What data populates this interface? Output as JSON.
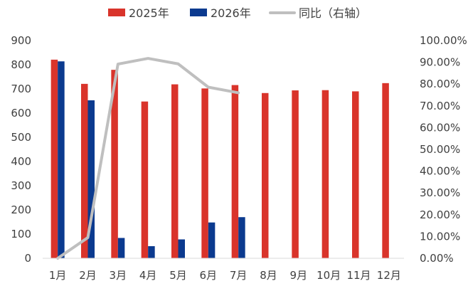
{
  "chart_data": {
    "type": "bar",
    "categories": [
      "1月",
      "2月",
      "3月",
      "4月",
      "5月",
      "6月",
      "7月",
      "8月",
      "9月",
      "10月",
      "11月",
      "12月"
    ],
    "series": [
      {
        "name": "2025年",
        "type": "bar",
        "axis": "left",
        "color": "#d9342b",
        "values": [
          821,
          721,
          779,
          648,
          719,
          702,
          716,
          683,
          694,
          695,
          690,
          724
        ]
      },
      {
        "name": "2026年",
        "type": "bar",
        "axis": "left",
        "color": "#0b3a8f",
        "values": [
          814,
          653,
          84,
          50,
          78,
          148,
          170,
          null,
          null,
          null,
          null,
          null
        ]
      },
      {
        "name": "同比（右轴）",
        "type": "line",
        "axis": "right",
        "color": "#bfbfbf",
        "values": [
          0.0,
          9.5,
          89.2,
          91.8,
          89.3,
          78.6,
          76.0,
          null,
          null,
          null,
          null,
          null
        ]
      }
    ],
    "y_left": {
      "min": 0,
      "max": 900,
      "step": 100,
      "ticks": [
        "0",
        "100",
        "200",
        "300",
        "400",
        "500",
        "600",
        "700",
        "800",
        "900"
      ]
    },
    "y_right": {
      "min": 0,
      "max": 100,
      "step": 10,
      "ticks": [
        "0.00%",
        "10.00%",
        "20.00%",
        "30.00%",
        "40.00%",
        "50.00%",
        "60.00%",
        "70.00%",
        "80.00%",
        "90.00%",
        "100.00%"
      ]
    },
    "legend": {
      "position": "top"
    },
    "grid": false
  }
}
